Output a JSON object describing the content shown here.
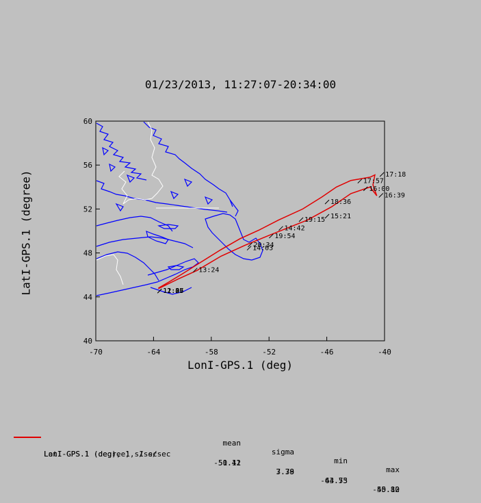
{
  "title": "01/23/2013, 11:27:07-20:34:00",
  "chart_data": {
    "type": "line",
    "xlabel": "LonI-GPS.1 (deg)",
    "ylabel": "LatI-GPS.1 (degree)",
    "xlim": [
      -70,
      -40
    ],
    "ylim": [
      40,
      60
    ],
    "xticks": [
      -70,
      -64,
      -58,
      -52,
      -46,
      -40
    ],
    "yticks": [
      40,
      44,
      48,
      52,
      56,
      60
    ],
    "track_color": "#e00000",
    "coast_color": "#0000ff",
    "border_color": "#ffffff",
    "track": [
      [
        -63.5,
        44.8
      ],
      [
        -62.5,
        45.3
      ],
      [
        -61.0,
        46.1
      ],
      [
        -59.0,
        47.2
      ],
      [
        -57.0,
        48.3
      ],
      [
        -55.0,
        49.3
      ],
      [
        -53.0,
        50.1
      ],
      [
        -51.0,
        51.0
      ],
      [
        -48.5,
        52.0
      ],
      [
        -46.5,
        53.1
      ],
      [
        -45.0,
        54.0
      ],
      [
        -43.5,
        54.6
      ],
      [
        -41.5,
        54.9
      ],
      [
        -41.0,
        55.1
      ],
      [
        -41.2,
        54.2
      ],
      [
        -40.8,
        53.2
      ],
      [
        -41.5,
        54.0
      ],
      [
        -43.5,
        53.4
      ],
      [
        -45.5,
        52.2
      ],
      [
        -48.0,
        51.0
      ],
      [
        -50.0,
        50.3
      ],
      [
        -52.0,
        49.6
      ],
      [
        -54.5,
        48.7
      ],
      [
        -57.0,
        47.7
      ],
      [
        -59.5,
        46.4
      ],
      [
        -61.5,
        45.6
      ],
      [
        -63.5,
        44.75
      ]
    ],
    "time_labels": [
      {
        "t": "17:18",
        "x": -40.2,
        "y": 55.2
      },
      {
        "t": "17:57",
        "x": -42.5,
        "y": 54.6
      },
      {
        "t": "16:00",
        "x": -41.9,
        "y": 53.9
      },
      {
        "t": "16:39",
        "x": -40.3,
        "y": 53.3
      },
      {
        "t": "18:36",
        "x": -45.9,
        "y": 52.7
      },
      {
        "t": "15:21",
        "x": -45.9,
        "y": 51.4
      },
      {
        "t": "19:15",
        "x": -48.6,
        "y": 51.1
      },
      {
        "t": "14:42",
        "x": -50.7,
        "y": 50.3
      },
      {
        "t": "19:54",
        "x": -51.7,
        "y": 49.6
      },
      {
        "t": "20:34",
        "x": -53.9,
        "y": 48.8
      },
      {
        "t": "14:03",
        "x": -54.0,
        "y": 48.5
      },
      {
        "t": "13:24",
        "x": -59.6,
        "y": 46.5
      },
      {
        "t": "12:45",
        "x": -63.3,
        "y": 44.6
      },
      {
        "t": "11:27",
        "x": -63.3,
        "y": 44.6
      },
      {
        "t": "12:06",
        "x": -63.3,
        "y": 44.6
      }
    ]
  },
  "legend": {
    "headers": {
      "mean": "mean",
      "sigma": "sigma",
      "min": "min",
      "max": "max"
    },
    "rows": [
      {
        "name": "LatI-GPS.1 (degree), 1 s/sec",
        "mean": "50.41",
        "sigma": "3.38",
        "min": "44.75",
        "max": "55.10"
      },
      {
        "name": "LonI-GPS.1 (deg), 1 s/sec",
        "mean": "-51.12",
        "sigma": "7.79",
        "min": "-63.53",
        "max": "-40.82"
      }
    ]
  }
}
